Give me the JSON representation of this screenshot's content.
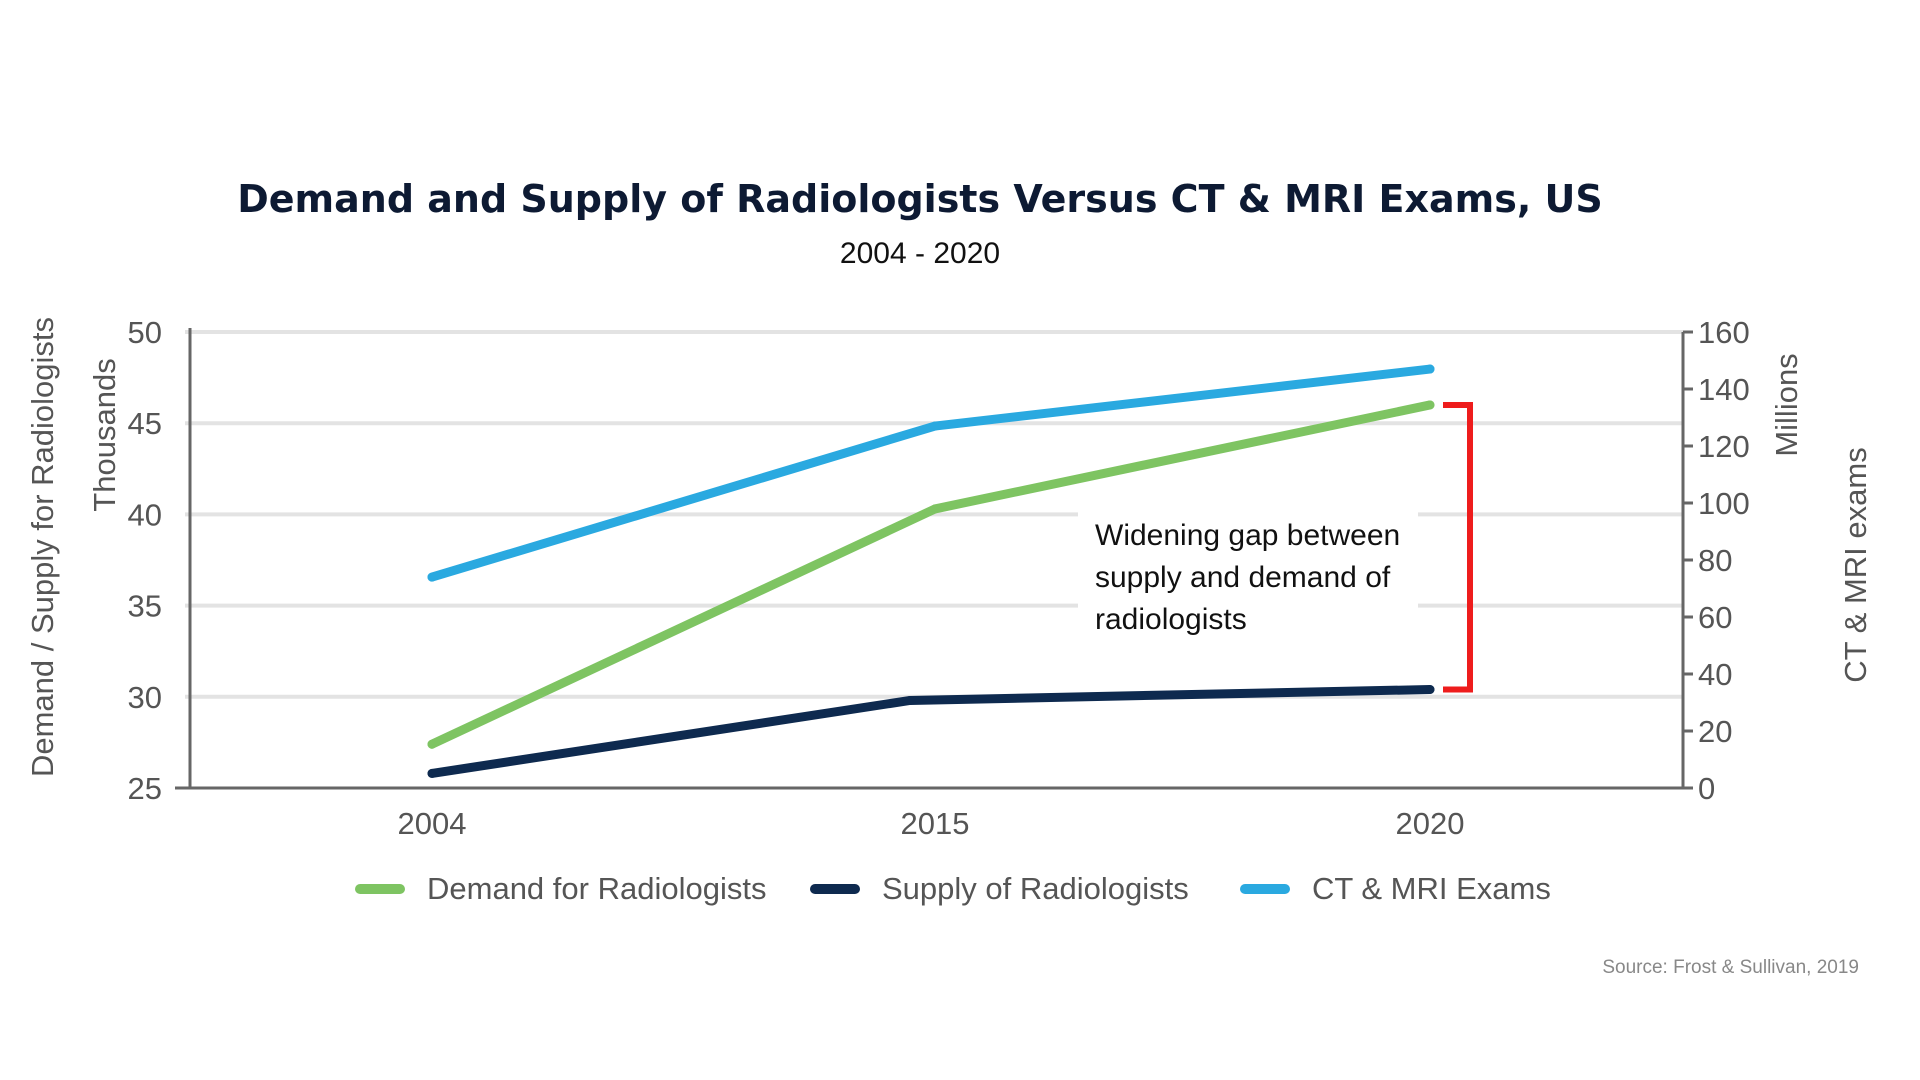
{
  "chart_data": {
    "type": "line",
    "title": "Demand and Supply of Radiologists Versus CT & MRI Exams, US",
    "subtitle": "2004 - 2020",
    "categories": [
      "2004",
      "2015",
      "2020"
    ],
    "y_left": {
      "label_outer": "Demand / Supply for Radiologists",
      "label_inner": "Thousands",
      "ticks": [
        "25",
        "30",
        "35",
        "40",
        "45",
        "50"
      ],
      "ylim": [
        25,
        50
      ]
    },
    "y_right": {
      "label_outer": "CT & MRI exams",
      "label_inner": "Millions",
      "ticks": [
        "0",
        "20",
        "40",
        "60",
        "80",
        "100",
        "120",
        "140",
        "160"
      ],
      "ylim": [
        0,
        160
      ]
    },
    "series": [
      {
        "name": "Demand for Radiologists",
        "axis": "left",
        "color": "#7ec462",
        "values": [
          27.4,
          40.3,
          46.0
        ]
      },
      {
        "name": "Supply of Radiologists",
        "axis": "left",
        "color": "#0e2a4f",
        "values": [
          25.8,
          29.8,
          30.4
        ]
      },
      {
        "name": "CT & MRI Exams",
        "axis": "right",
        "color": "#2aa9e0",
        "values": [
          74,
          127,
          147
        ]
      }
    ],
    "annotation": {
      "lines": [
        "Widening gap between",
        "supply and demand of",
        "radiologists"
      ],
      "bracket_color": "#ee1c1c"
    },
    "grid": true,
    "legend_position": "bottom",
    "source": "Source: Frost & Sullivan, 2019"
  }
}
